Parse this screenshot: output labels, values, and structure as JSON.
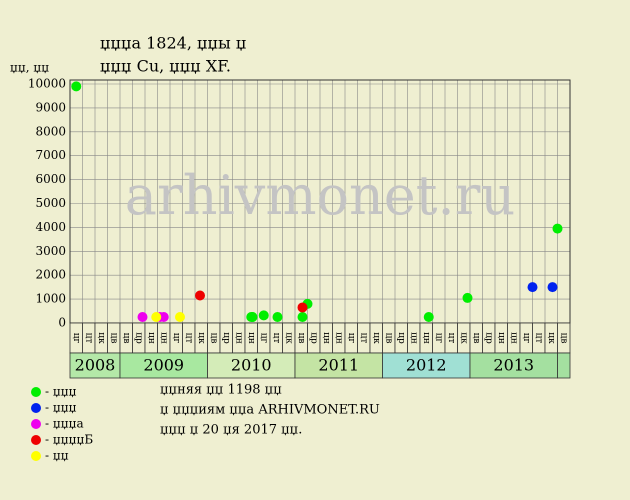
{
  "chart_data": {
    "type": "scatter",
    "title": [
      "џџџа 1824, џџы џ",
      "џџџ Cu, џџџ XF."
    ],
    "y_label": "џџ, џџ",
    "watermark": "arhivmonet.ru",
    "ylim": [
      0,
      10000
    ],
    "yticks": [
      0,
      1000,
      2000,
      3000,
      4000,
      5000,
      6000,
      7000,
      8000,
      9000,
      10000
    ],
    "grid": true,
    "categories": [
      "цг",
      "цт",
      "цк",
      "цв",
      "цв",
      "цр",
      "цн",
      "цн",
      "цг",
      "цт",
      "цк",
      "цв",
      "цр",
      "цн",
      "цн",
      "цг",
      "цт",
      "цк",
      "цв",
      "цр",
      "цн",
      "цн",
      "цг",
      "цт",
      "цк",
      "цв",
      "цр",
      "цн",
      "цн",
      "цг",
      "цт",
      "цк",
      "цв",
      "цр",
      "цн",
      "цн",
      "цг",
      "цт",
      "цк",
      "цв"
    ],
    "years": [
      {
        "label": "2008",
        "start": 0,
        "end": 4,
        "color": "#b4e8a8"
      },
      {
        "label": "2009",
        "start": 4,
        "end": 11,
        "color": "#a8e8a0"
      },
      {
        "label": "2010",
        "start": 11,
        "end": 18,
        "color": "#d4ecb8"
      },
      {
        "label": "2011",
        "start": 18,
        "end": 25,
        "color": "#c4e4a4"
      },
      {
        "label": "2012",
        "start": 25,
        "end": 32,
        "color": "#a0e0d4"
      },
      {
        "label": "2013",
        "start": 32,
        "end": 39,
        "color": "#a4e0a0"
      },
      {
        "label": null,
        "start": 39,
        "end": 40,
        "color": "#a4e0a0"
      }
    ],
    "series": [
      {
        "name": "- џџџ",
        "color": "#00ee00",
        "x": [
          0.0,
          14.0,
          14.1,
          15.0,
          16.1,
          18.1,
          18.5,
          28.2,
          31.3,
          38.5
        ],
        "values": [
          9900,
          250,
          250,
          320,
          250,
          250,
          800,
          250,
          1050,
          3950
        ]
      },
      {
        "name": "- џџџ",
        "color": "#0022ee",
        "x": [
          36.5,
          38.1
        ],
        "values": [
          1500,
          1500
        ]
      },
      {
        "name": "- џџџа",
        "color": "#ee00ee",
        "x": [
          5.3,
          6.7,
          7.0
        ],
        "values": [
          250,
          250,
          250
        ]
      },
      {
        "name": "- џџџџБ",
        "color": "#ee0000",
        "x": [
          9.9,
          18.1
        ],
        "values": [
          1150,
          650
        ]
      },
      {
        "name": "- џџ",
        "color": "#ffff00",
        "x": [
          6.4,
          8.3
        ],
        "values": [
          250,
          250
        ]
      }
    ],
    "notes": [
      "џџняя џџ 1198 џџ",
      "џ џџџиям џџа ARHIVMONET.RU",
      "џџџ џ 20 џя 2017 џџ."
    ]
  }
}
